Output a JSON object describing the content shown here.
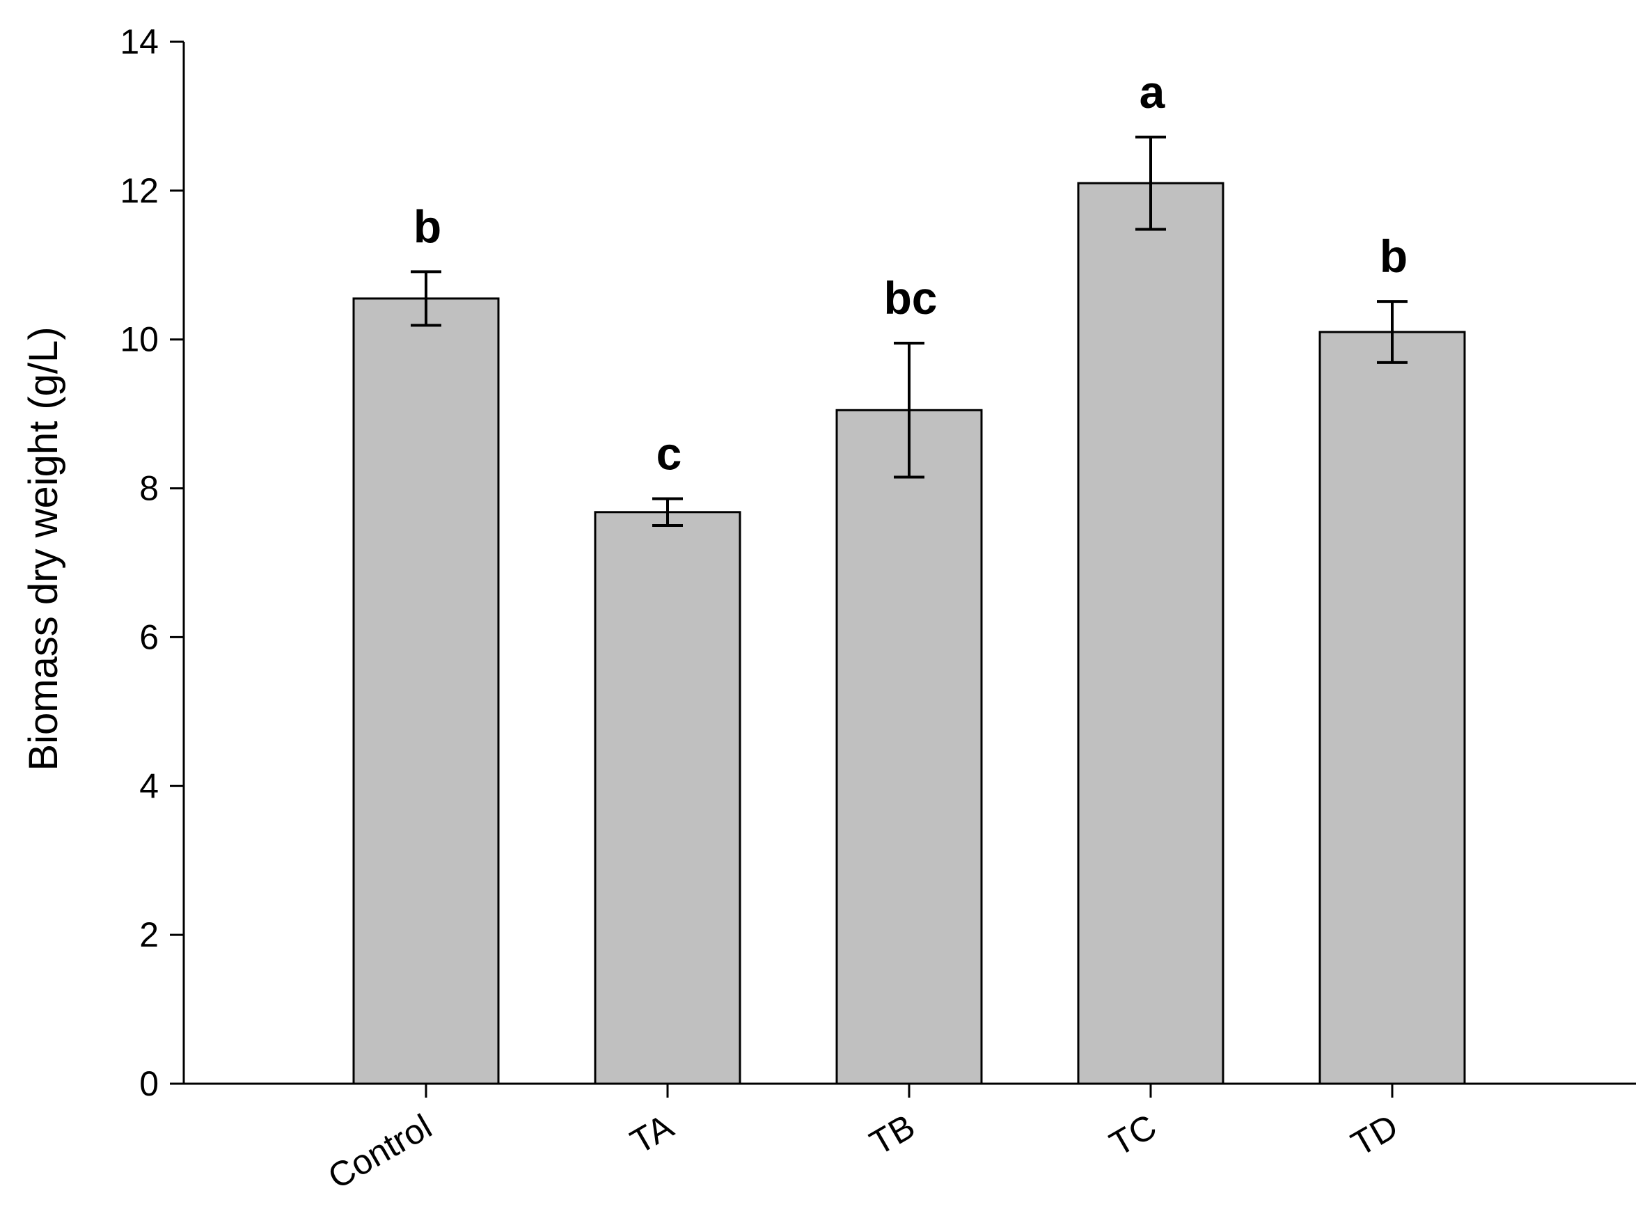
{
  "chart_data": {
    "type": "bar",
    "title": "",
    "xlabel": "",
    "ylabel": "Biomass dry weight (g/L)",
    "categories": [
      "Control",
      "TA",
      "TB",
      "TC",
      "TD"
    ],
    "values": [
      10.55,
      7.68,
      9.05,
      12.1,
      10.1
    ],
    "error": [
      0.36,
      0.18,
      0.9,
      0.62,
      0.41
    ],
    "significance_letters": [
      "b",
      "c",
      "bc",
      "a",
      "b"
    ],
    "ylim": [
      0,
      14
    ],
    "yticks": [
      0,
      2,
      4,
      6,
      8,
      10,
      12,
      14
    ],
    "grid": false,
    "legend": "none",
    "colors": {
      "bar_fill": "#c0c0c0",
      "bar_stroke": "#000000",
      "axis": "#000000"
    }
  }
}
